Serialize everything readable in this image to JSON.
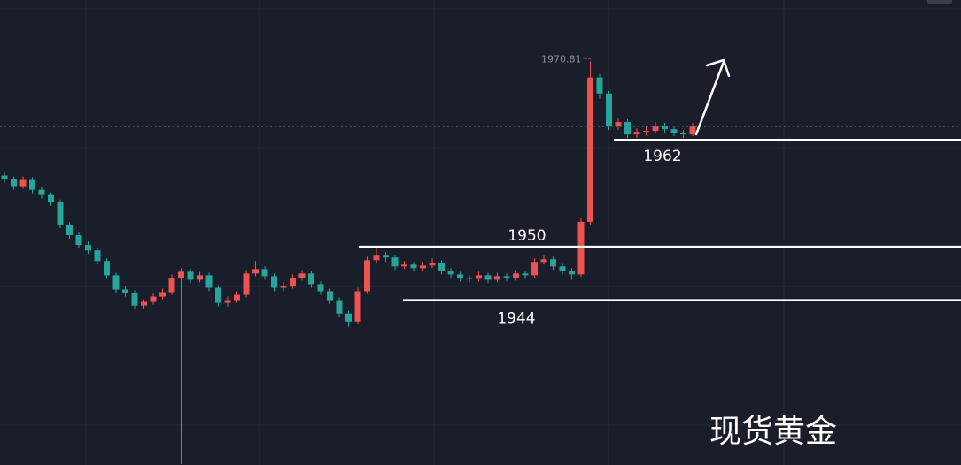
{
  "chart_data": {
    "type": "candlestick",
    "open": [
      1958.0,
      1957.6,
      1956.8,
      1957.5,
      1956.4,
      1955.8,
      1955.0,
      1952.5,
      1951.3,
      1950.2,
      1949.6,
      1948.4,
      1946.8,
      1945.2,
      1944.8,
      1943.4,
      1943.8,
      1944.4,
      1944.9,
      1946.5,
      1947.2,
      1946.3,
      1946.8,
      1945.4,
      1943.7,
      1944.0,
      1944.6,
      1947.0,
      1947.5,
      1946.7,
      1945.4,
      1945.6,
      1946.5,
      1947.0,
      1945.8,
      1945.0,
      1944.0,
      1942.5,
      1941.6,
      1945.0,
      1948.5,
      1949.0,
      1948.8,
      1947.8,
      1948.0,
      1947.6,
      1947.9,
      1948.2,
      1947.3,
      1946.9,
      1946.5,
      1946.4,
      1946.8,
      1946.3,
      1946.7,
      1946.5,
      1947.0,
      1946.8,
      1948.3,
      1948.6,
      1947.8,
      1947.3,
      1946.9,
      1952.8,
      1969.0,
      1967.2,
      1963.5,
      1964.0,
      1962.6,
      1962.9,
      1963.0,
      1963.6,
      1963.2,
      1962.8,
      1962.6
    ],
    "high": [
      1958.4,
      1957.9,
      1957.9,
      1957.8,
      1956.7,
      1956.1,
      1955.3,
      1952.8,
      1951.7,
      1950.6,
      1949.9,
      1948.7,
      1947.1,
      1945.6,
      1945.1,
      1944.1,
      1944.8,
      1945.3,
      1946.9,
      1947.6,
      1947.5,
      1947.2,
      1947.1,
      1945.7,
      1944.4,
      1945.0,
      1947.4,
      1948.4,
      1947.8,
      1947.0,
      1946.0,
      1946.9,
      1947.4,
      1947.3,
      1946.1,
      1945.3,
      1944.3,
      1942.8,
      1945.4,
      1948.9,
      1949.9,
      1949.4,
      1949.1,
      1948.4,
      1948.3,
      1948.3,
      1948.7,
      1948.5,
      1947.6,
      1947.2,
      1946.8,
      1947.2,
      1947.1,
      1947.1,
      1947.0,
      1947.4,
      1947.3,
      1948.7,
      1949.0,
      1948.9,
      1948.1,
      1947.6,
      1953.2,
      1970.81,
      1969.4,
      1967.5,
      1964.4,
      1964.3,
      1963.3,
      1963.6,
      1964.0,
      1963.9,
      1963.5,
      1963.1,
      1963.9
    ],
    "low": [
      1957.2,
      1956.4,
      1956.5,
      1956.0,
      1955.4,
      1954.6,
      1952.1,
      1950.9,
      1949.8,
      1949.2,
      1948.0,
      1946.4,
      1944.8,
      1944.4,
      1943.0,
      1943.0,
      1943.5,
      1944.1,
      1944.6,
      1925.6,
      1945.9,
      1946.0,
      1945.0,
      1943.3,
      1943.3,
      1943.7,
      1944.3,
      1946.7,
      1946.3,
      1945.0,
      1945.0,
      1945.3,
      1946.2,
      1945.4,
      1944.6,
      1943.6,
      1942.1,
      1941.0,
      1941.3,
      1944.7,
      1948.1,
      1948.3,
      1947.4,
      1947.5,
      1947.2,
      1947.3,
      1947.6,
      1946.9,
      1946.5,
      1946.1,
      1946.0,
      1946.1,
      1945.9,
      1946.0,
      1946.1,
      1946.2,
      1946.4,
      1946.5,
      1948.0,
      1947.4,
      1946.9,
      1946.3,
      1946.6,
      1952.5,
      1966.6,
      1963.1,
      1963.1,
      1962.2,
      1962.2,
      1962.5,
      1962.7,
      1962.8,
      1962.4,
      1962.2,
      1962.4
    ],
    "close": [
      1957.6,
      1956.8,
      1957.5,
      1956.4,
      1955.8,
      1955.0,
      1952.5,
      1951.3,
      1950.2,
      1949.6,
      1948.4,
      1946.8,
      1945.2,
      1944.8,
      1943.4,
      1943.8,
      1944.4,
      1944.9,
      1946.5,
      1947.2,
      1946.3,
      1946.8,
      1945.4,
      1943.7,
      1944.0,
      1944.6,
      1947.0,
      1947.5,
      1946.7,
      1945.4,
      1945.6,
      1946.5,
      1947.0,
      1945.8,
      1945.0,
      1944.0,
      1942.5,
      1941.6,
      1945.0,
      1948.5,
      1949.0,
      1948.8,
      1947.8,
      1948.0,
      1947.6,
      1947.9,
      1948.2,
      1947.3,
      1946.9,
      1946.5,
      1946.4,
      1946.8,
      1946.3,
      1946.7,
      1946.5,
      1947.0,
      1946.8,
      1948.3,
      1948.6,
      1947.8,
      1947.3,
      1946.9,
      1952.8,
      1969.0,
      1967.2,
      1963.5,
      1964.0,
      1962.6,
      1962.9,
      1963.0,
      1963.6,
      1963.2,
      1962.8,
      1962.6,
      1963.5
    ],
    "ylim": [
      1925.5,
      1977.7
    ],
    "up_color": "#ef5350",
    "down_color": "#26a69a",
    "high_label": 1970.81,
    "levels": [
      1962,
      1950,
      1944
    ]
  },
  "watermark": "现货黄金"
}
